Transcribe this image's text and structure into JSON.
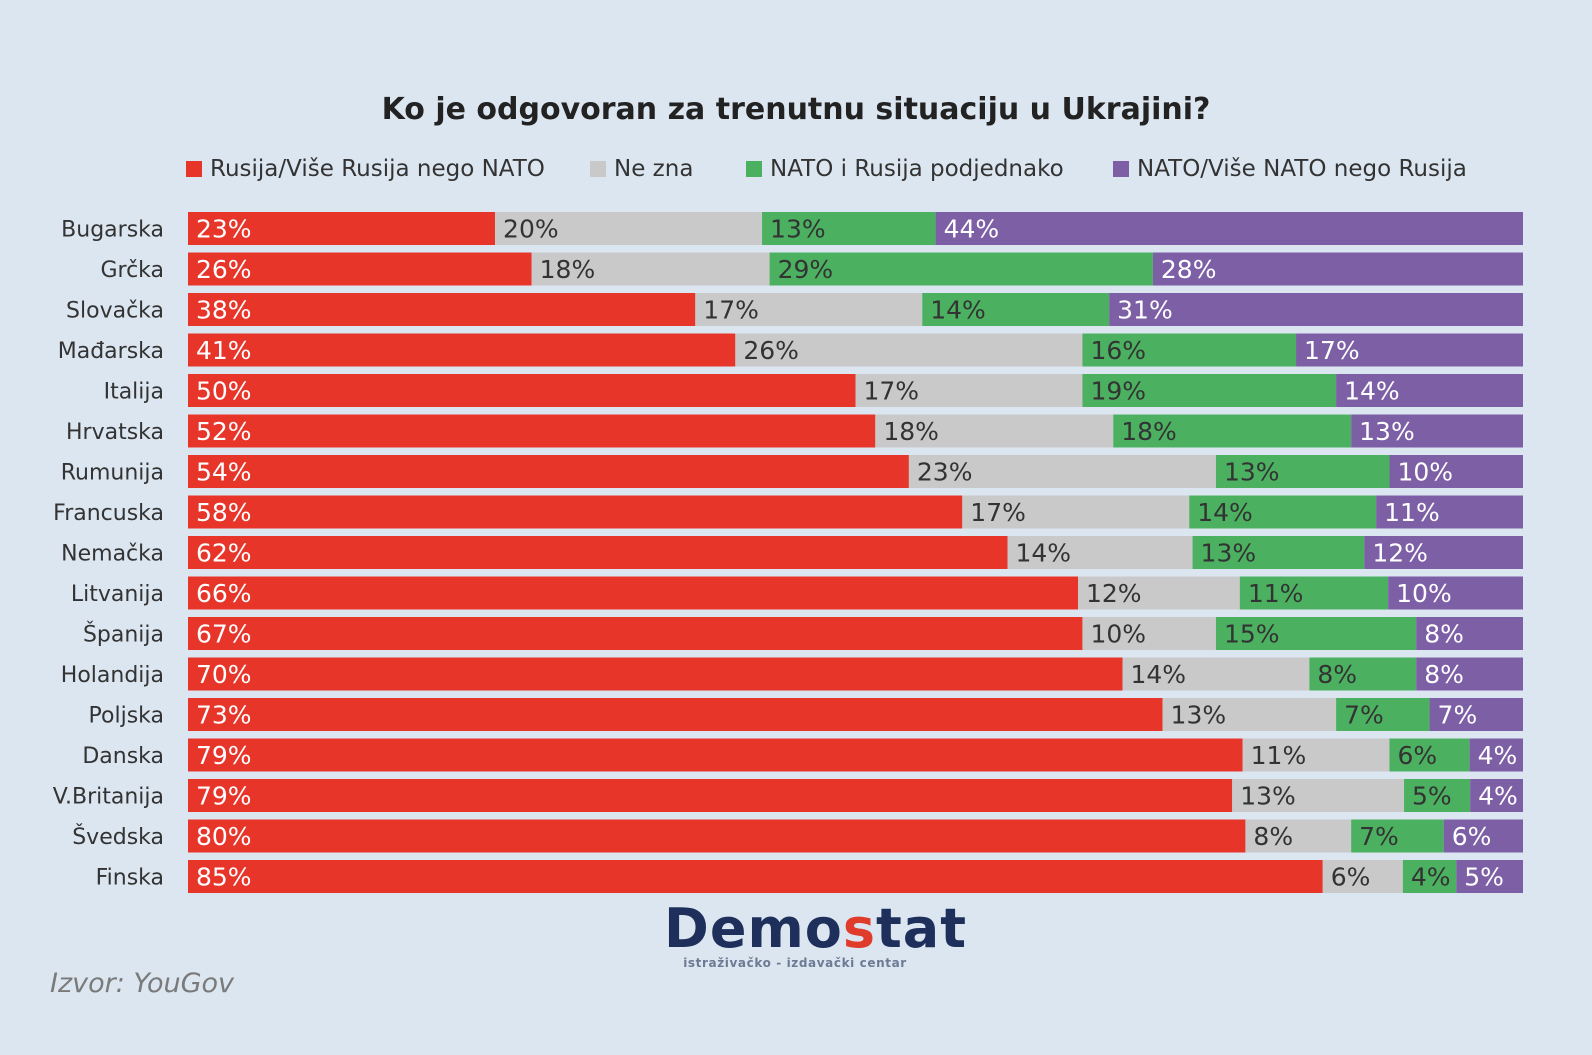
{
  "colors": {
    "background": "#dce6f1",
    "series": [
      "#e8352a",
      "#c9c9c9",
      "#4bb060",
      "#7d5fa6"
    ]
  },
  "source_label": "Izvor: YouGov",
  "logo": {
    "word_start": "Demo",
    "word_accent": "s",
    "word_end": "tat",
    "tagline": "istraživačko - izdavački centar"
  },
  "chart_data": {
    "type": "bar",
    "orientation": "horizontal",
    "stacked": true,
    "normalized_percent": true,
    "title": "Ko je odgovoran za trenutnu situaciju u Ukrajini?",
    "legend_position": "top",
    "categories": [
      "Bugarska",
      "Grčka",
      "Slovačka",
      "Mađarska",
      "Italija",
      "Hrvatska",
      "Rumunija",
      "Francuska",
      "Nemačka",
      "Litvanija",
      "Španija",
      "Holandija",
      "Poljska",
      "Danska",
      "V.Britanija",
      "Švedska",
      "Finska"
    ],
    "series": [
      {
        "name": "Rusija/Više Rusija nego NATO",
        "color": "#e8352a",
        "values": [
          23,
          26,
          38,
          41,
          50,
          52,
          54,
          58,
          62,
          66,
          67,
          70,
          73,
          79,
          79,
          80,
          85
        ]
      },
      {
        "name": "Ne zna",
        "color": "#c9c9c9",
        "values": [
          20,
          18,
          17,
          26,
          17,
          18,
          23,
          17,
          14,
          12,
          10,
          14,
          13,
          11,
          13,
          8,
          6
        ]
      },
      {
        "name": "NATO i Rusija podjednako",
        "color": "#4bb060",
        "values": [
          13,
          29,
          14,
          16,
          19,
          18,
          13,
          14,
          13,
          11,
          15,
          8,
          7,
          6,
          5,
          7,
          4
        ]
      },
      {
        "name": "NATO/Više NATO nego Rusija",
        "color": "#7d5fa6",
        "values": [
          44,
          28,
          31,
          17,
          14,
          13,
          10,
          11,
          12,
          10,
          8,
          8,
          7,
          4,
          4,
          6,
          5
        ]
      }
    ],
    "value_suffix": "%"
  }
}
